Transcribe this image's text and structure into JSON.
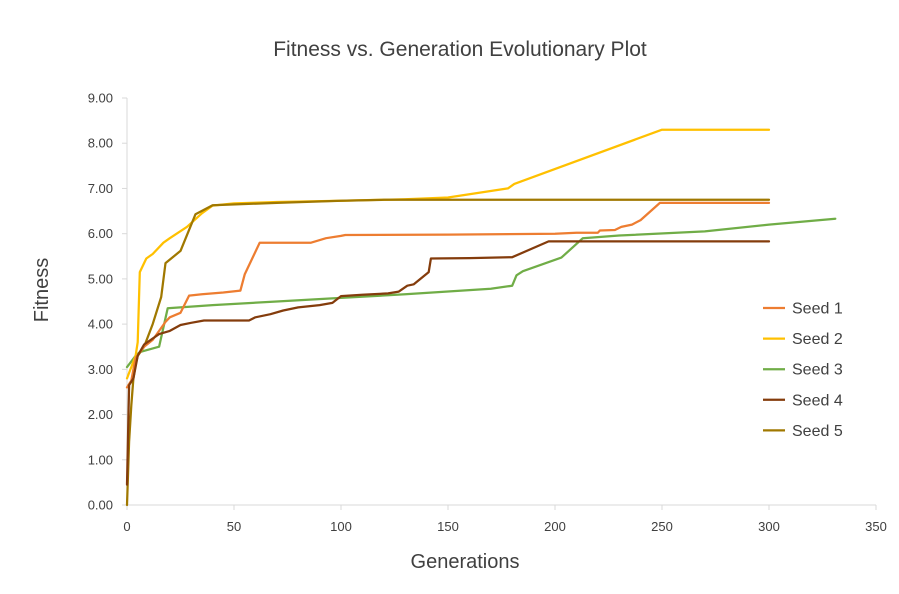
{
  "chart_data": {
    "type": "line",
    "title": "Fitness vs. Generation Evolutionary Plot",
    "xlabel": "Generations",
    "ylabel": "Fitness",
    "xlim": [
      0,
      350
    ],
    "ylim": [
      0,
      9
    ],
    "x_ticks": [
      "0",
      "50",
      "100",
      "150",
      "200",
      "250",
      "300",
      "350"
    ],
    "y_ticks": [
      "0.00",
      "1.00",
      "2.00",
      "3.00",
      "4.00",
      "5.00",
      "6.00",
      "7.00",
      "8.00",
      "9.00"
    ],
    "grid": false,
    "legend_position": "right",
    "series": [
      {
        "name": "Seed 1",
        "color": "#ED7D31",
        "points": [
          [
            0,
            2.6
          ],
          [
            2,
            2.75
          ],
          [
            4,
            3.25
          ],
          [
            8,
            3.5
          ],
          [
            12,
            3.65
          ],
          [
            18,
            4.05
          ],
          [
            20,
            4.15
          ],
          [
            25,
            4.25
          ],
          [
            29,
            4.63
          ],
          [
            35,
            4.66
          ],
          [
            45,
            4.7
          ],
          [
            53,
            4.74
          ],
          [
            55,
            5.1
          ],
          [
            62,
            5.8
          ],
          [
            73,
            5.8
          ],
          [
            86,
            5.8
          ],
          [
            93,
            5.9
          ],
          [
            100,
            5.95
          ],
          [
            102,
            5.97
          ],
          [
            150,
            5.98
          ],
          [
            200,
            6.0
          ],
          [
            210,
            6.02
          ],
          [
            220,
            6.02
          ],
          [
            221,
            6.07
          ],
          [
            228,
            6.08
          ],
          [
            231,
            6.15
          ],
          [
            236,
            6.2
          ],
          [
            240,
            6.3
          ],
          [
            249,
            6.68
          ],
          [
            300,
            6.68
          ]
        ]
      },
      {
        "name": "Seed 2",
        "color": "#FFC000",
        "points": [
          [
            0,
            2.8
          ],
          [
            2,
            3.05
          ],
          [
            4,
            3.3
          ],
          [
            5,
            3.6
          ],
          [
            6,
            5.15
          ],
          [
            9,
            5.45
          ],
          [
            12,
            5.55
          ],
          [
            17,
            5.8
          ],
          [
            20,
            5.9
          ],
          [
            28,
            6.15
          ],
          [
            35,
            6.45
          ],
          [
            40,
            6.62
          ],
          [
            50,
            6.67
          ],
          [
            70,
            6.7
          ],
          [
            100,
            6.73
          ],
          [
            130,
            6.76
          ],
          [
            150,
            6.8
          ],
          [
            178,
            7.0
          ],
          [
            181,
            7.1
          ],
          [
            250,
            8.3
          ],
          [
            300,
            8.3
          ]
        ]
      },
      {
        "name": "Seed 3",
        "color": "#70AD47",
        "points": [
          [
            0,
            3.05
          ],
          [
            4,
            3.3
          ],
          [
            6,
            3.38
          ],
          [
            15,
            3.5
          ],
          [
            19,
            4.35
          ],
          [
            40,
            4.42
          ],
          [
            70,
            4.5
          ],
          [
            100,
            4.58
          ],
          [
            130,
            4.66
          ],
          [
            170,
            4.78
          ],
          [
            180,
            4.85
          ],
          [
            182,
            5.08
          ],
          [
            185,
            5.17
          ],
          [
            203,
            5.47
          ],
          [
            213,
            5.9
          ],
          [
            230,
            5.96
          ],
          [
            270,
            6.05
          ],
          [
            300,
            6.2
          ],
          [
            331,
            6.33
          ]
        ]
      },
      {
        "name": "Seed 4",
        "color": "#843C0C",
        "points": [
          [
            0,
            0.45
          ],
          [
            1,
            2.65
          ],
          [
            3,
            2.8
          ],
          [
            5,
            3.3
          ],
          [
            8,
            3.55
          ],
          [
            15,
            3.78
          ],
          [
            20,
            3.85
          ],
          [
            25,
            3.98
          ],
          [
            30,
            4.03
          ],
          [
            36,
            4.08
          ],
          [
            45,
            4.08
          ],
          [
            57,
            4.08
          ],
          [
            60,
            4.15
          ],
          [
            67,
            4.22
          ],
          [
            73,
            4.3
          ],
          [
            80,
            4.37
          ],
          [
            90,
            4.42
          ],
          [
            96,
            4.47
          ],
          [
            100,
            4.62
          ],
          [
            110,
            4.65
          ],
          [
            122,
            4.68
          ],
          [
            127,
            4.72
          ],
          [
            131,
            4.85
          ],
          [
            134,
            4.88
          ],
          [
            141,
            5.15
          ],
          [
            142,
            5.45
          ],
          [
            160,
            5.46
          ],
          [
            180,
            5.48
          ],
          [
            197,
            5.83
          ],
          [
            300,
            5.83
          ]
        ]
      },
      {
        "name": "Seed 5",
        "color": "#A07800",
        "points": [
          [
            0,
            0
          ],
          [
            1,
            1.4
          ],
          [
            2,
            2.2
          ],
          [
            3,
            2.8
          ],
          [
            4,
            3.1
          ],
          [
            5,
            3.3
          ],
          [
            8,
            3.5
          ],
          [
            12,
            4.0
          ],
          [
            16,
            4.6
          ],
          [
            18,
            5.35
          ],
          [
            25,
            5.62
          ],
          [
            32,
            6.43
          ],
          [
            40,
            6.63
          ],
          [
            70,
            6.68
          ],
          [
            100,
            6.73
          ],
          [
            120,
            6.75
          ],
          [
            300,
            6.75
          ]
        ]
      }
    ]
  }
}
